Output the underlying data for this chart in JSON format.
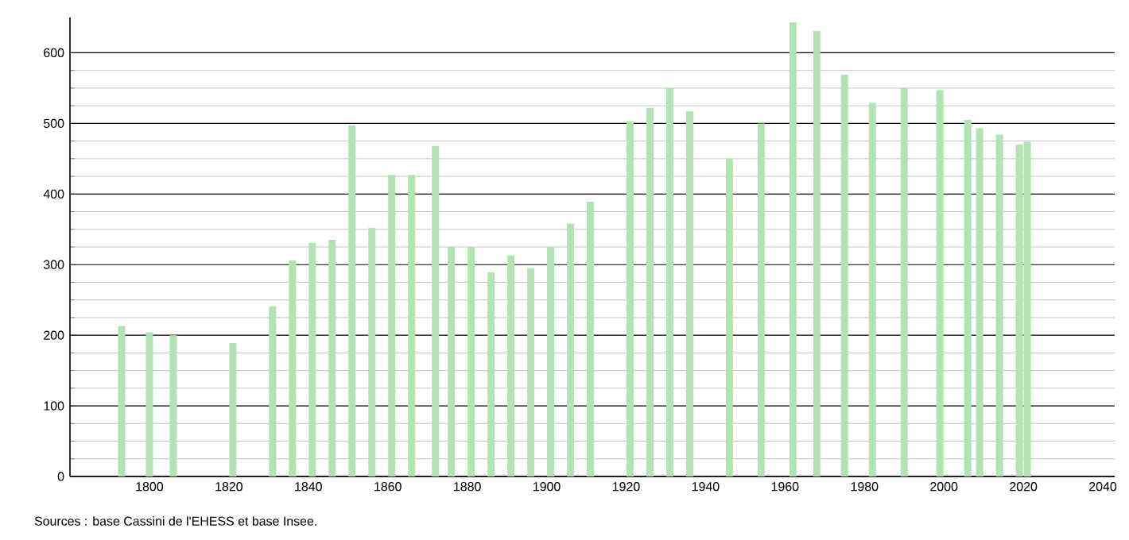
{
  "chart_data": {
    "type": "bar",
    "x": [
      1793,
      1800,
      1806,
      1821,
      1831,
      1836,
      1841,
      1846,
      1851,
      1856,
      1861,
      1866,
      1872,
      1876,
      1881,
      1886,
      1891,
      1896,
      1901,
      1906,
      1911,
      1921,
      1926,
      1931,
      1936,
      1946,
      1954,
      1962,
      1968,
      1975,
      1982,
      1990,
      1999,
      2006,
      2009,
      2014,
      2019,
      2021
    ],
    "values": [
      213,
      204,
      200,
      189,
      241,
      306,
      331,
      335,
      497,
      352,
      427,
      427,
      468,
      325,
      325,
      289,
      313,
      295,
      325,
      358,
      389,
      503,
      522,
      550,
      517,
      450,
      500,
      643,
      631,
      569,
      529,
      550,
      547,
      505,
      493,
      484,
      470,
      474
    ],
    "color": "#b3e3b3",
    "xlim": [
      1780,
      2043
    ],
    "ylim": [
      0,
      650
    ],
    "xticks": [
      1800,
      1820,
      1840,
      1860,
      1880,
      1900,
      1920,
      1940,
      1960,
      1980,
      2000,
      2020,
      2040
    ],
    "yticks": [
      0,
      100,
      200,
      300,
      400,
      500,
      600
    ],
    "grid": "y",
    "annotations": [
      "Sources : base Cassini de l'EHESS et base Insee."
    ]
  }
}
